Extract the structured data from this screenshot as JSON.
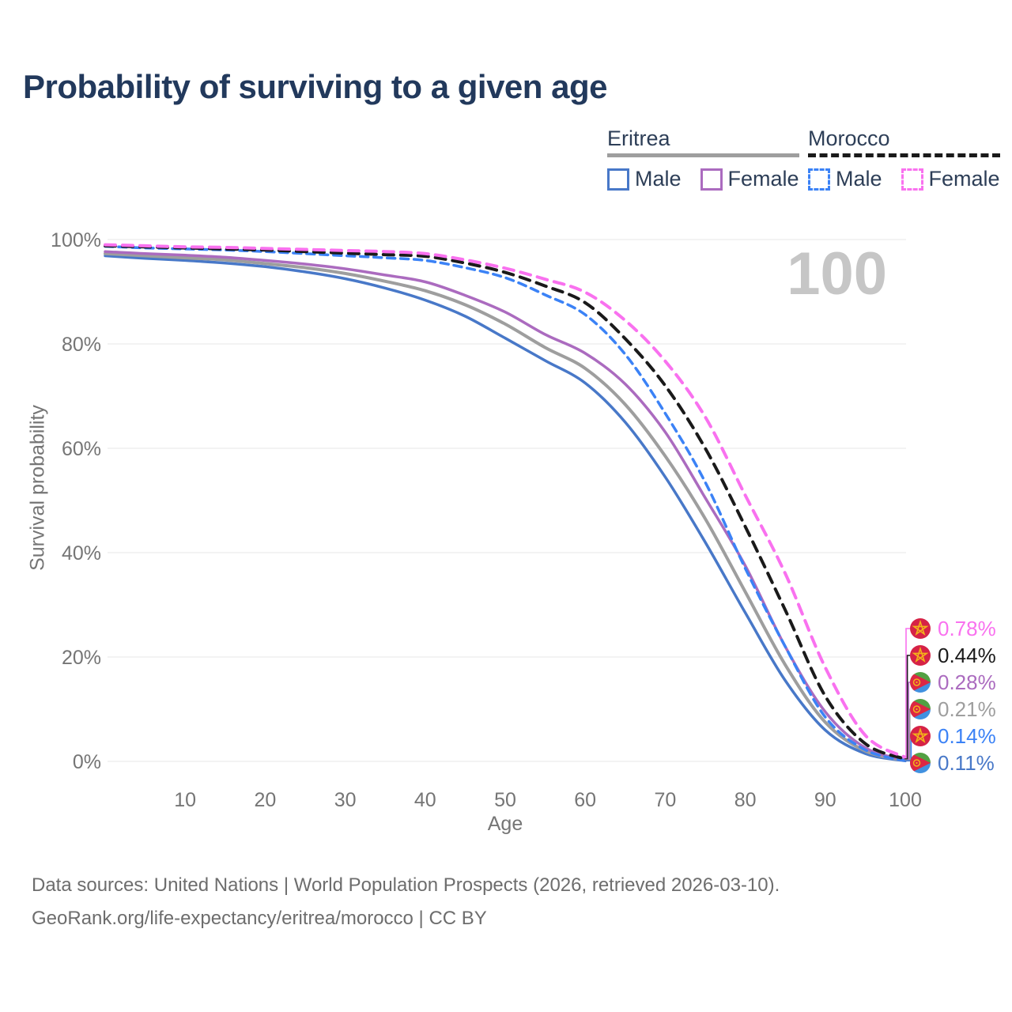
{
  "header": {
    "title": "Probability of surviving to a given age"
  },
  "legend": {
    "groups": [
      {
        "name": "Eritrea",
        "line_style": "solid",
        "underline_color": "#9e9e9e",
        "items": [
          {
            "label": "Male",
            "color": "#4878c8"
          },
          {
            "label": "Female",
            "color": "#ab6bbf"
          }
        ]
      },
      {
        "name": "Morocco",
        "line_style": "dashed",
        "underline_color": "#1a1a1a",
        "items": [
          {
            "label": "Male",
            "color": "#3b82f6"
          },
          {
            "label": "Female",
            "color": "#f971ef"
          }
        ]
      }
    ]
  },
  "chart_data": {
    "type": "line",
    "title": "Probability of surviving to a given age",
    "xlabel": "Age",
    "ylabel": "Survival probability",
    "xlim": [
      0,
      100
    ],
    "ylim": [
      0,
      100
    ],
    "x_ticks": [
      10,
      20,
      30,
      40,
      50,
      60,
      70,
      80,
      90,
      100
    ],
    "y_ticks": [
      0,
      20,
      40,
      60,
      80,
      100
    ],
    "y_tick_suffix": "%",
    "grid": "horizontal",
    "age_counter_watermark": "100",
    "x": [
      0,
      5,
      10,
      15,
      20,
      25,
      30,
      35,
      40,
      45,
      50,
      55,
      60,
      65,
      70,
      75,
      80,
      85,
      90,
      95,
      100
    ],
    "series": [
      {
        "key": "eritrea-male",
        "name": "Eritrea Male",
        "color": "#4878c8",
        "dash": null,
        "width": 3.5,
        "values": [
          96.9,
          96.4,
          96.0,
          95.5,
          94.8,
          93.8,
          92.5,
          90.7,
          88.4,
          85.3,
          81.1,
          76.8,
          72.5,
          65.0,
          54.5,
          42.0,
          28.5,
          15.5,
          6.0,
          1.5,
          0.11
        ]
      },
      {
        "key": "eritrea-average",
        "name": "Eritrea",
        "color": "#9e9e9e",
        "dash": null,
        "width": 4,
        "values": [
          97.3,
          96.9,
          96.5,
          96.1,
          95.4,
          94.6,
          93.5,
          92.0,
          90.2,
          87.5,
          83.8,
          79.3,
          75.3,
          68.4,
          58.5,
          46.5,
          32.5,
          18.5,
          7.5,
          2.0,
          0.21
        ]
      },
      {
        "key": "eritrea-female",
        "name": "Eritrea Female",
        "color": "#ab6bbf",
        "dash": null,
        "width": 3.5,
        "values": [
          97.7,
          97.3,
          97.0,
          96.6,
          96.0,
          95.3,
          94.4,
          93.2,
          91.9,
          89.3,
          86.1,
          81.8,
          78.2,
          72.3,
          63.1,
          50.5,
          37.5,
          22.0,
          9.5,
          2.6,
          0.28
        ]
      },
      {
        "key": "morocco-male",
        "name": "Morocco Male",
        "color": "#3b82f6",
        "dash": "10 7",
        "width": 3.5,
        "values": [
          98.7,
          98.4,
          98.2,
          98.0,
          97.7,
          97.3,
          96.9,
          96.5,
          96.0,
          94.6,
          92.7,
          89.4,
          85.6,
          78.0,
          66.7,
          53.5,
          37.0,
          22.0,
          8.5,
          2.2,
          0.14
        ]
      },
      {
        "key": "morocco-average",
        "name": "Morocco",
        "color": "#1a1a1a",
        "dash": "13 9",
        "width": 4,
        "values": [
          98.8,
          98.6,
          98.4,
          98.2,
          98.0,
          97.7,
          97.4,
          97.1,
          96.8,
          95.5,
          93.7,
          91.1,
          87.9,
          81.0,
          72.0,
          60.0,
          45.0,
          29.0,
          12.5,
          3.4,
          0.44
        ]
      },
      {
        "key": "morocco-female",
        "name": "Morocco Female",
        "color": "#f971ef",
        "dash": "13 9",
        "width": 4,
        "values": [
          99.0,
          98.8,
          98.6,
          98.5,
          98.3,
          98.1,
          97.9,
          97.7,
          97.3,
          96.1,
          94.5,
          92.4,
          89.9,
          84.5,
          76.7,
          66.0,
          51.0,
          36.0,
          18.0,
          5.0,
          0.78
        ]
      }
    ],
    "end_labels": [
      {
        "series": "morocco-female",
        "flag": "morocco",
        "value": "0.78%",
        "color": "#f971ef"
      },
      {
        "series": "morocco-average",
        "flag": "morocco",
        "value": "0.44%",
        "color": "#1a1a1a"
      },
      {
        "series": "eritrea-female",
        "flag": "eritrea",
        "value": "0.28%",
        "color": "#ab6bbf"
      },
      {
        "series": "eritrea-average",
        "flag": "eritrea",
        "value": "0.21%",
        "color": "#9e9e9e"
      },
      {
        "series": "morocco-male",
        "flag": "morocco",
        "value": "0.14%",
        "color": "#3b82f6"
      },
      {
        "series": "eritrea-male",
        "flag": "eritrea",
        "value": "0.11%",
        "color": "#4878c8"
      }
    ]
  },
  "footer": {
    "line1": "Data sources: United Nations | World Population Prospects (2026, retrieved 2026-03-10).",
    "line2": "GeoRank.org/life-expectancy/eritrea/morocco | CC BY"
  }
}
